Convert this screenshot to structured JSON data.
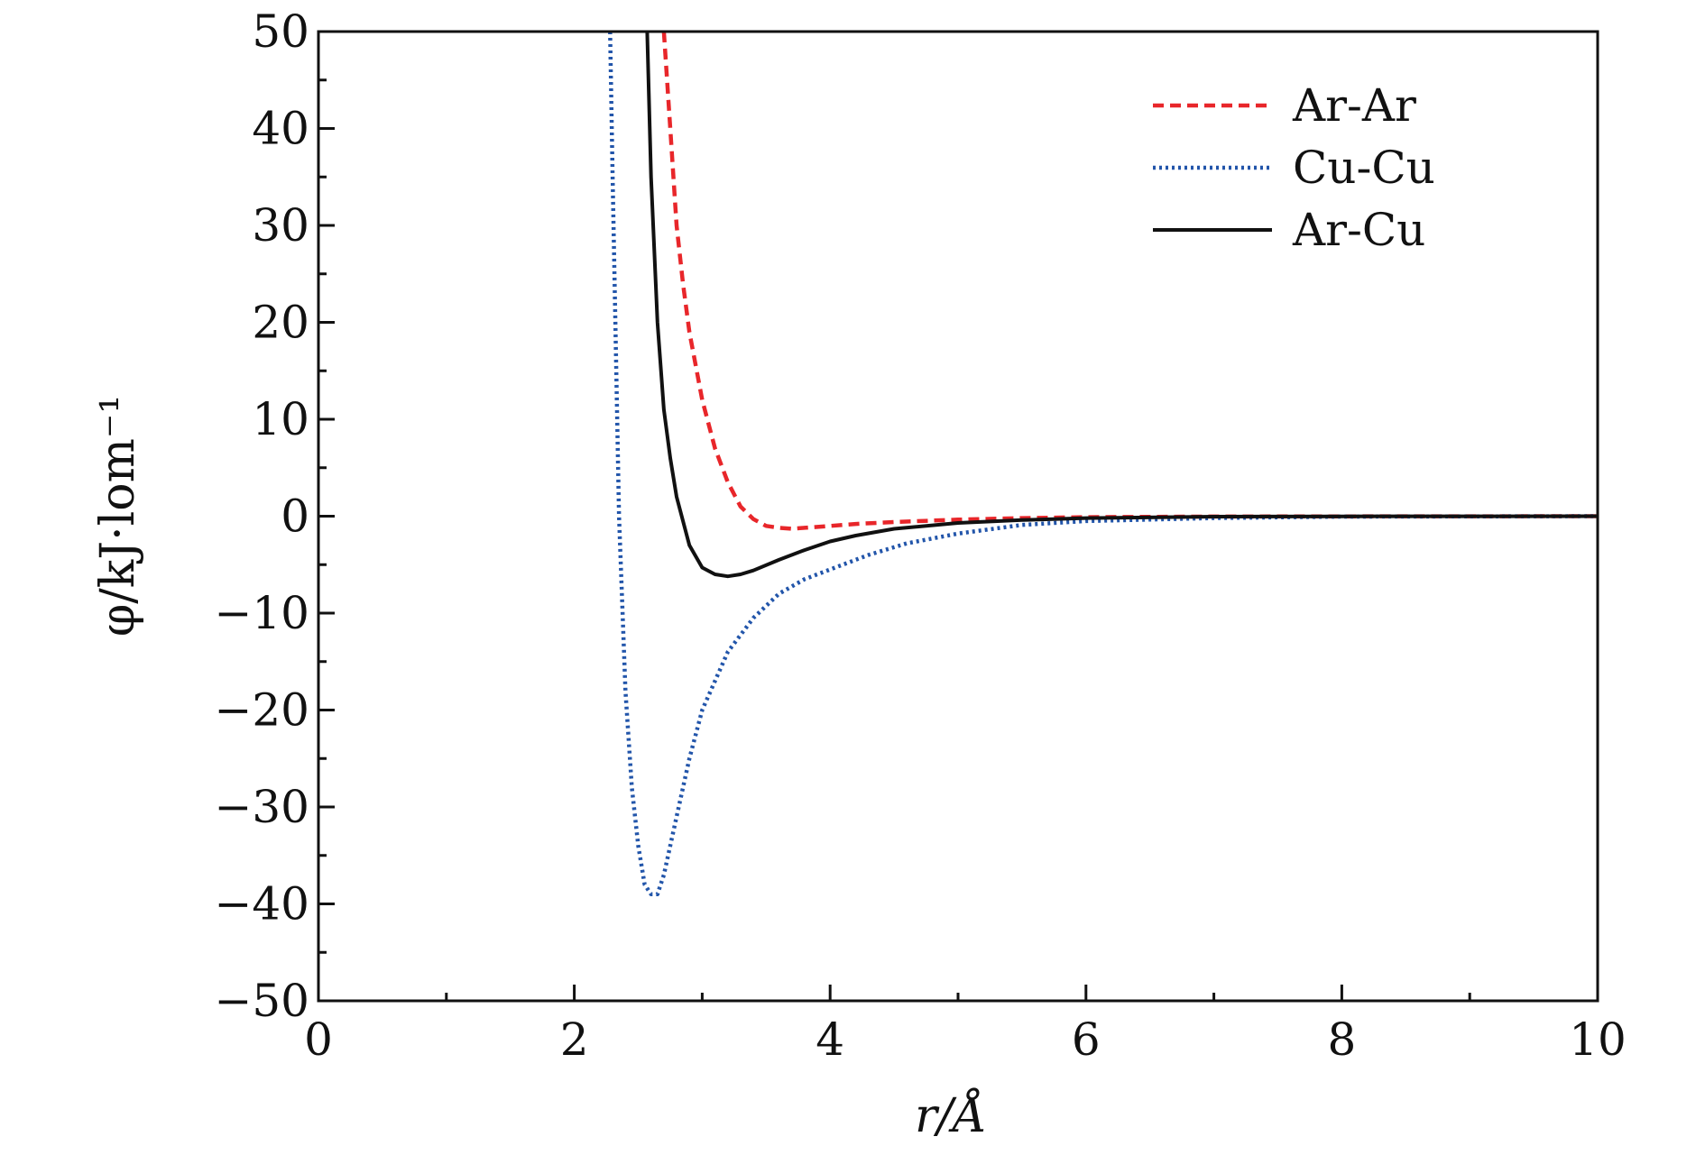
{
  "chart_data": {
    "type": "line",
    "xlabel": "r/Å",
    "ylabel": "φ/kJ·lom⁻¹",
    "xlim": [
      0,
      10
    ],
    "ylim": [
      -50,
      50
    ],
    "x_ticks": [
      "0",
      "2",
      "4",
      "6",
      "8",
      "10"
    ],
    "y_ticks": [
      "50",
      "40",
      "30",
      "20",
      "10",
      "0",
      "−10",
      "−20",
      "−30",
      "−40",
      "−50"
    ],
    "grid": false,
    "legend_position": "top-right",
    "series": [
      {
        "name": "Ar-Ar",
        "color": "#e8262a",
        "style": "dashed",
        "x": [
          2.7,
          2.75,
          2.8,
          2.85,
          2.9,
          3.0,
          3.1,
          3.2,
          3.3,
          3.4,
          3.5,
          3.6,
          3.7,
          3.8,
          4.0,
          4.2,
          4.5,
          5.0,
          5.5,
          6.0,
          7.0,
          8.0,
          9.0,
          10.0
        ],
        "y": [
          50,
          40,
          30,
          24,
          19,
          12,
          7,
          3.5,
          1.0,
          -0.3,
          -1.0,
          -1.2,
          -1.3,
          -1.2,
          -1.0,
          -0.8,
          -0.6,
          -0.35,
          -0.2,
          -0.1,
          -0.04,
          -0.02,
          -0.01,
          0
        ]
      },
      {
        "name": "Cu-Cu",
        "color": "#2255aa",
        "style": "dash-dot",
        "x": [
          2.28,
          2.3,
          2.35,
          2.4,
          2.45,
          2.5,
          2.55,
          2.6,
          2.65,
          2.7,
          2.8,
          2.9,
          3.0,
          3.2,
          3.4,
          3.6,
          3.8,
          4.0,
          4.3,
          4.6,
          5.0,
          5.5,
          6.0,
          7.0,
          8.0,
          10.0
        ],
        "y": [
          50,
          35,
          0,
          -18,
          -28,
          -34,
          -38,
          -39,
          -39,
          -37,
          -31,
          -25,
          -20,
          -14,
          -10.5,
          -8,
          -6.5,
          -5.5,
          -4,
          -2.8,
          -1.8,
          -0.9,
          -0.5,
          -0.2,
          -0.05,
          0
        ]
      },
      {
        "name": "Ar-Cu",
        "color": "#111111",
        "style": "solid",
        "x": [
          2.57,
          2.6,
          2.65,
          2.7,
          2.75,
          2.8,
          2.9,
          3.0,
          3.1,
          3.2,
          3.3,
          3.4,
          3.6,
          3.8,
          4.0,
          4.2,
          4.5,
          5.0,
          5.5,
          6.0,
          7.0,
          8.0,
          10.0
        ],
        "y": [
          50,
          35,
          20,
          11,
          6,
          2,
          -3,
          -5.3,
          -6.0,
          -6.2,
          -6.0,
          -5.6,
          -4.5,
          -3.5,
          -2.6,
          -2.0,
          -1.3,
          -0.7,
          -0.4,
          -0.2,
          -0.05,
          -0.02,
          0
        ]
      }
    ]
  }
}
